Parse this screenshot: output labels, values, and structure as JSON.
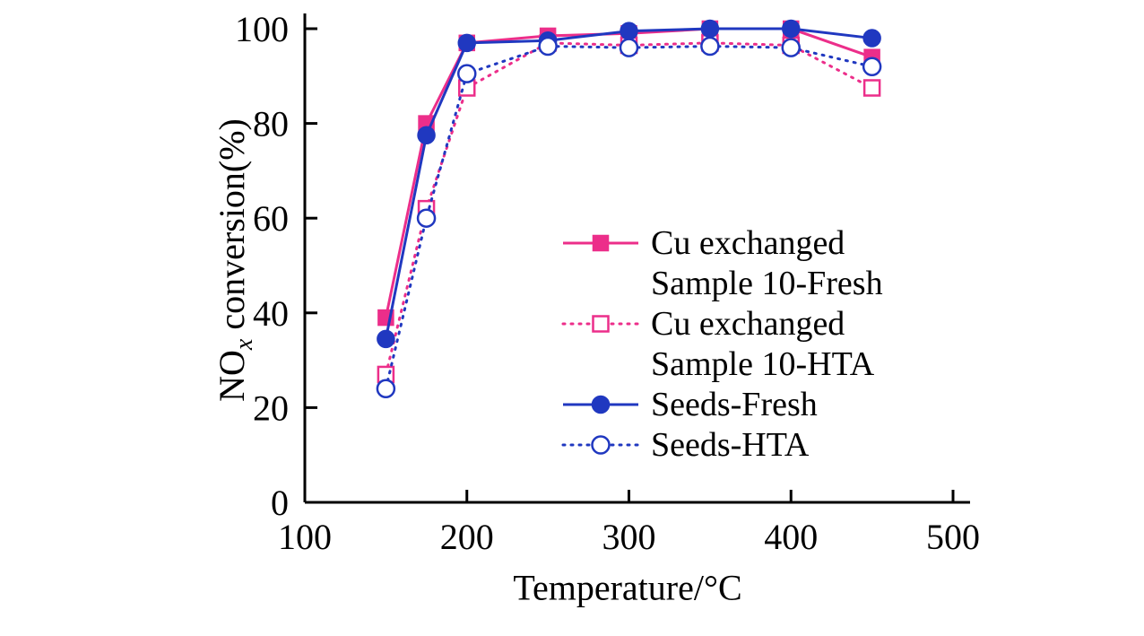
{
  "figure": {
    "background": "#ffffff",
    "axis_color": "#000000"
  },
  "chart_data": {
    "type": "line",
    "title": "",
    "xlabel": "Temperature/°C",
    "ylabel": "NOx conversion(%)",
    "ylabel_parts": {
      "prefix": "NO",
      "sub": "x",
      "suffix": " conversion(%)"
    },
    "xlim": [
      100,
      500
    ],
    "ylim": [
      0,
      100
    ],
    "xticks": [
      100,
      200,
      300,
      400,
      500
    ],
    "yticks": [
      0,
      20,
      40,
      60,
      80,
      100
    ],
    "grid": false,
    "legend_position": "inside-center-right",
    "x": [
      150,
      175,
      200,
      250,
      300,
      350,
      400,
      450
    ],
    "series": [
      {
        "name": "Cu exchanged Sample 10-Fresh",
        "legend_lines": [
          "Cu exchanged",
          "Sample 10-Fresh"
        ],
        "color": "#ec2e8a",
        "marker": "square",
        "marker_fill": "filled",
        "line_style": "solid",
        "values": [
          39,
          80,
          97,
          98.5,
          99,
          100,
          100,
          94
        ]
      },
      {
        "name": "Cu exchanged Sample 10-HTA",
        "legend_lines": [
          "Cu exchanged",
          "Sample 10-HTA"
        ],
        "color": "#ec2e8a",
        "marker": "square",
        "marker_fill": "open",
        "line_style": "dotted",
        "values": [
          27,
          62,
          87.5,
          97,
          96.5,
          97,
          96.5,
          87.5
        ]
      },
      {
        "name": "Seeds-Fresh",
        "legend_lines": [
          "Seeds-Fresh"
        ],
        "color": "#2038c0",
        "marker": "circle",
        "marker_fill": "filled",
        "line_style": "solid",
        "values": [
          34.5,
          77.5,
          97,
          97.5,
          99.5,
          100,
          100,
          98
        ]
      },
      {
        "name": "Seeds-HTA",
        "legend_lines": [
          "Seeds-HTA"
        ],
        "color": "#2038c0",
        "marker": "circle",
        "marker_fill": "open",
        "line_style": "dotted",
        "values": [
          24,
          60,
          90.5,
          96.3,
          96,
          96.3,
          96,
          92
        ]
      }
    ]
  }
}
